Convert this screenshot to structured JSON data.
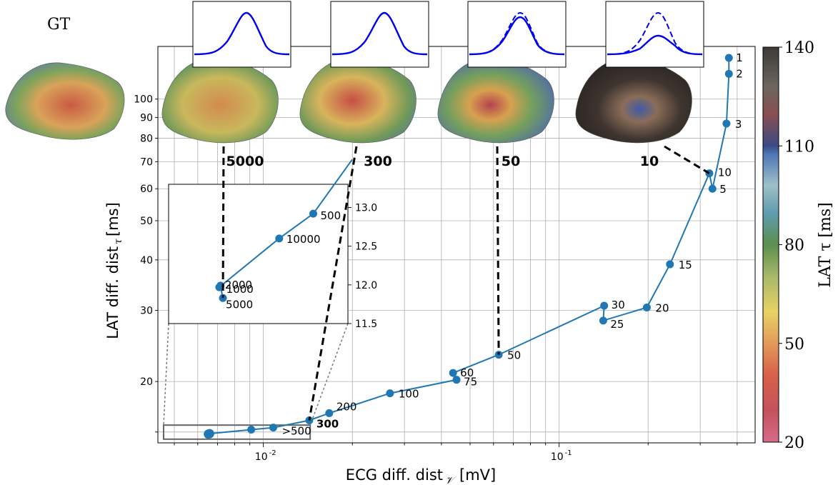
{
  "figure": {
    "gt_label": "GT",
    "xlabel": "ECG diff. dist",
    "xlabel_sub": "𝒱",
    "xlabel_unit": "[mV]",
    "ylabel": "LAT diff. dist",
    "ylabel_sub": "τ",
    "ylabel_unit": "[ms]",
    "colorbar_label": "LAT τ [ms]"
  },
  "chart_data": {
    "type": "scatter",
    "x_scale": "log",
    "y_scale": "log",
    "xlim": [
      0.0044,
      0.46
    ],
    "ylim": [
      14.1,
      135
    ],
    "x_tick_labels": [
      "10^-2",
      "10^-1"
    ],
    "y_tick_labels": [
      "20",
      "30",
      "40",
      "50",
      "60",
      "70",
      "80",
      "90",
      "100"
    ],
    "grid": true,
    "series_color": "#1f77b4",
    "points": [
      {
        "label": "1",
        "x": 0.375,
        "y": 126.5
      },
      {
        "label": "2",
        "x": 0.375,
        "y": 115.5
      },
      {
        "label": "3",
        "x": 0.368,
        "y": 87
      },
      {
        "label": "5",
        "x": 0.33,
        "y": 60
      },
      {
        "label": "10",
        "x": 0.322,
        "y": 65.5
      },
      {
        "label": "15",
        "x": 0.237,
        "y": 39
      },
      {
        "label": "20",
        "x": 0.198,
        "y": 30.5
      },
      {
        "label": "25",
        "x": 0.141,
        "y": 28.3
      },
      {
        "label": "30",
        "x": 0.142,
        "y": 30.8
      },
      {
        "label": "50",
        "x": 0.0625,
        "y": 23.3
      },
      {
        "label": "60",
        "x": 0.0438,
        "y": 21
      },
      {
        "label": "75",
        "x": 0.045,
        "y": 20.2
      },
      {
        "label": "100",
        "x": 0.0268,
        "y": 18.7
      },
      {
        "label": "200",
        "x": 0.0167,
        "y": 16.7
      },
      {
        "label": "300",
        "x": 0.0143,
        "y": 16.03
      },
      {
        "label": ">500",
        "x": 0.0108,
        "y": 15.38
      },
      {
        "label": "",
        "x": 0.0091,
        "y": 15.2
      },
      {
        "label": "",
        "x": 0.00658,
        "y": 14.86
      },
      {
        "label": "",
        "x": 0.00652,
        "y": 14.82
      }
    ],
    "highlighted_label": "300",
    "inset": {
      "xlim": [
        0.0046,
        0.0144
      ],
      "ylim": [
        11.5,
        13.3
      ],
      "y_tick_labels": [
        "11.5",
        "12.0",
        "12.5",
        "13.0"
      ],
      "points": [
        {
          "label": "500",
          "x": 0.01155,
          "y": 12.92
        },
        {
          "label": "10000",
          "x": 0.0093,
          "y": 12.6
        },
        {
          "label": "1000",
          "x": 0.0064,
          "y": 11.99
        },
        {
          "label": "2000",
          "x": 0.00635,
          "y": 11.97
        },
        {
          "label": "5000",
          "x": 0.0065,
          "y": 11.83
        }
      ]
    },
    "snapshots": [
      {
        "label": "5000",
        "linked_point": "5000"
      },
      {
        "label": "300",
        "linked_point": "300"
      },
      {
        "label": "50",
        "linked_point": "50"
      },
      {
        "label": "10",
        "linked_point": "10"
      }
    ],
    "colorbar": {
      "min": 20,
      "max": 140,
      "tick_labels": [
        "20",
        "50",
        "80",
        "110",
        "140"
      ]
    }
  }
}
